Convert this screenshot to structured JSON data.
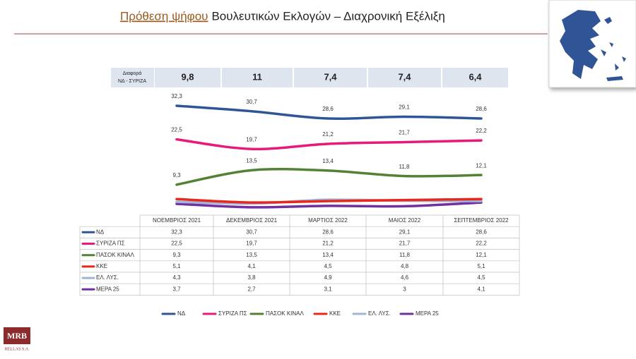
{
  "title_highlight": "Πρόθεση ψήφου",
  "title": "Βουλευτικών Εκλογών – Διαχρονική Εξέλιξη",
  "logo": {
    "name": "MRB",
    "subtitle": "HELLAS S.A."
  },
  "chart_data": {
    "type": "line",
    "categories": [
      "ΝΟΕΜΒΡΙΟΣ 2021",
      "ΔΕΚΕΜΒΡΙΟΣ 2021",
      "ΜΑΡΤΙΟΣ 2022",
      "ΜΑΙΟΣ 2022",
      "ΣΕΠΤΕΜΒΡΙΟΣ 2022"
    ],
    "difference": {
      "label": [
        "Διαφορά",
        "ΝΔ - ΣΥΡΙΖΑ"
      ],
      "values": [
        9.8,
        11,
        7.4,
        7.4,
        6.4
      ],
      "value_labels": [
        "9,8",
        "11",
        "7,4",
        "7,4",
        "6,4"
      ]
    },
    "series": [
      {
        "name": "ΝΔ",
        "color": "#2f5597",
        "labels_on_chart": true,
        "values": [
          32.3,
          30.7,
          28.6,
          29.1,
          28.6
        ],
        "value_labels": [
          "32,3",
          "30,7",
          "28,6",
          "29,1",
          "28,6"
        ]
      },
      {
        "name": "ΣΥΡΙΖΑ ΠΣ",
        "color": "#e8197b",
        "labels_on_chart": true,
        "values": [
          22.5,
          19.7,
          21.2,
          21.7,
          22.2
        ],
        "value_labels": [
          "22,5",
          "19,7",
          "21,2",
          "21,7",
          "22,2"
        ]
      },
      {
        "name": "ΠΑΣΟΚ ΚΙΝΑΛ",
        "color": "#548235",
        "labels_on_chart": true,
        "values": [
          9.3,
          13.5,
          13.4,
          11.8,
          12.1
        ],
        "value_labels": [
          "9,3",
          "13,5",
          "13,4",
          "11,8",
          "12,1"
        ]
      },
      {
        "name": "ΚΚΕ",
        "color": "#e8281c",
        "labels_on_chart": false,
        "values": [
          5.1,
          4.1,
          4.5,
          4.8,
          5.1
        ],
        "value_labels": [
          "5,1",
          "4,1",
          "4,5",
          "4,8",
          "5,1"
        ]
      },
      {
        "name": "ΕΛ. ΛΥΣ.",
        "color": "#9fb4d8",
        "labels_on_chart": false,
        "values": [
          4.3,
          3.8,
          4.9,
          4.6,
          4.5
        ],
        "value_labels": [
          "4,3",
          "3,8",
          "4,9",
          "4,6",
          "4,5"
        ]
      },
      {
        "name": "ΜΕΡΑ 25",
        "color": "#7030a0",
        "labels_on_chart": false,
        "values": [
          3.7,
          2.7,
          3.1,
          3,
          4.1
        ],
        "value_labels": [
          "3,7",
          "2,7",
          "3,1",
          "3",
          "4,1"
        ]
      }
    ]
  }
}
